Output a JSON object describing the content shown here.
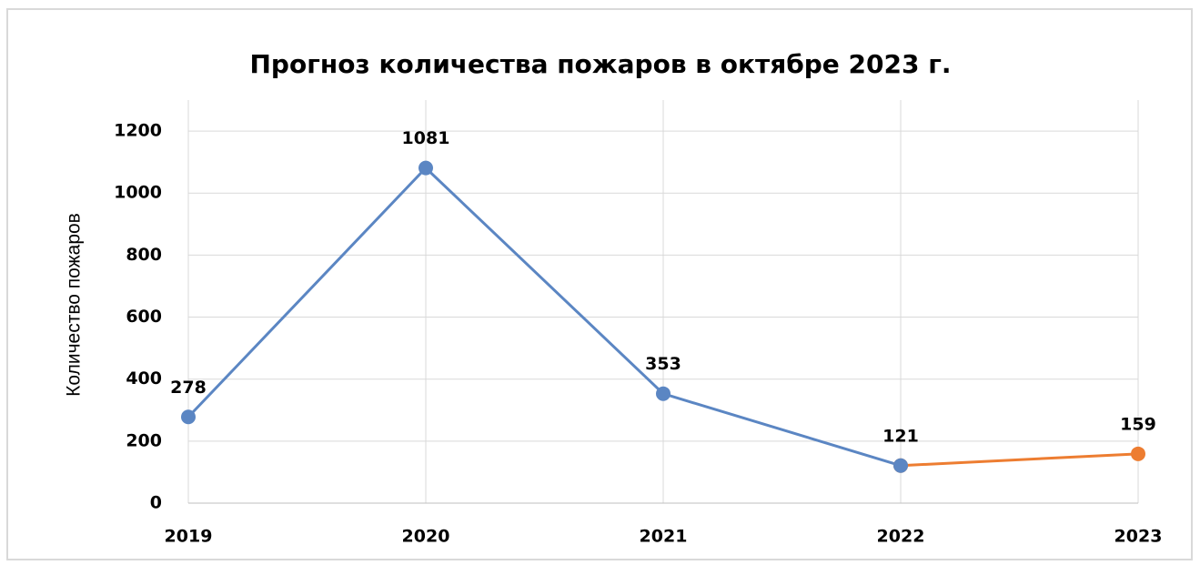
{
  "chart_data": {
    "type": "line",
    "title": "Прогноз количества пожаров в октябре 2023 г.",
    "y_label": "Количество пожаров",
    "x": [
      2019,
      2020,
      2021,
      2022,
      2023
    ],
    "xlim": [
      2019,
      2023
    ],
    "xticks": [
      2019,
      2020,
      2021,
      2022,
      2023
    ],
    "series": [
      {
        "color": "#5b86c3",
        "values": [
          278,
          1081,
          353,
          121,
          null
        ]
      },
      {
        "color": "#ed7d31",
        "values": [
          null,
          null,
          null,
          121,
          159
        ]
      }
    ],
    "ylim": [
      0,
      1300
    ],
    "yticks": [
      0,
      200,
      400,
      600,
      800,
      1000,
      1200
    ],
    "grid": true
  }
}
